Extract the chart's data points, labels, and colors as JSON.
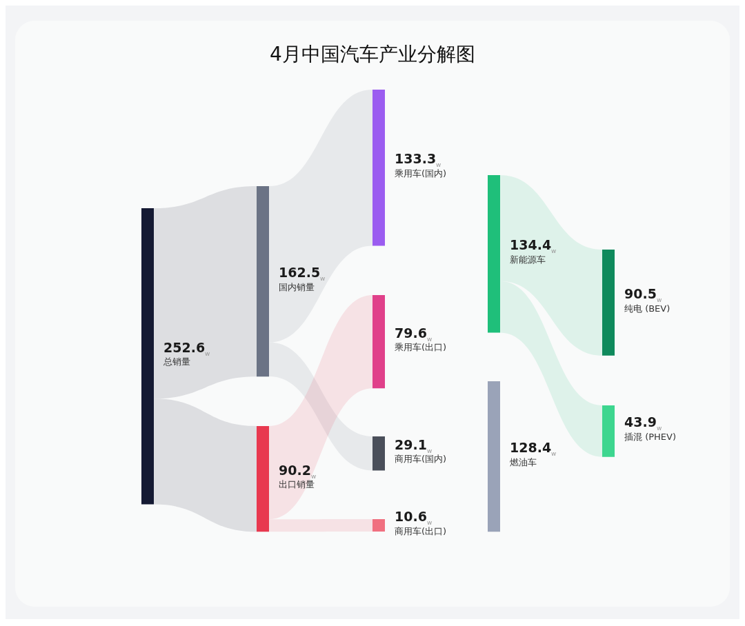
{
  "chart_data": {
    "type": "other",
    "title": "4月中国汽车产业分解图",
    "categories": [
      "总销量",
      "国内销量",
      "出口销量",
      "乘用车(国内)",
      "乘用车(出口)",
      "商用车(国内)",
      "商用车(出口)",
      "新能源车",
      "燃油车",
      "纯电 (BEV)",
      "插混 (PHEV)"
    ],
    "values": [
      252.6,
      162.5,
      90.2,
      133.3,
      79.6,
      29.1,
      10.6,
      134.4,
      128.4,
      90.5,
      43.9
    ],
    "value_labels": [
      "252.6$_{w}$",
      "162.5$_{w}$",
      "90.2$_{w}$",
      "133.3$_{w}$",
      "79.6$_{w}$",
      "29.1$_{w}$",
      "10.6$_{w}$",
      "134.4$_{w}$",
      "128.4$_{w}$",
      "90.5$_{w}$",
      "43.9$_{w}$"
    ],
    "colors": [
      "#151a33",
      "#6b7385",
      "#e8394f",
      "#9b5cf0",
      "#e0408a",
      "#4a4f5a",
      "#f07080",
      "#1fbf7a",
      "#9aa3b8",
      "#0f8a5c",
      "#3dd68f"
    ]
  }
}
